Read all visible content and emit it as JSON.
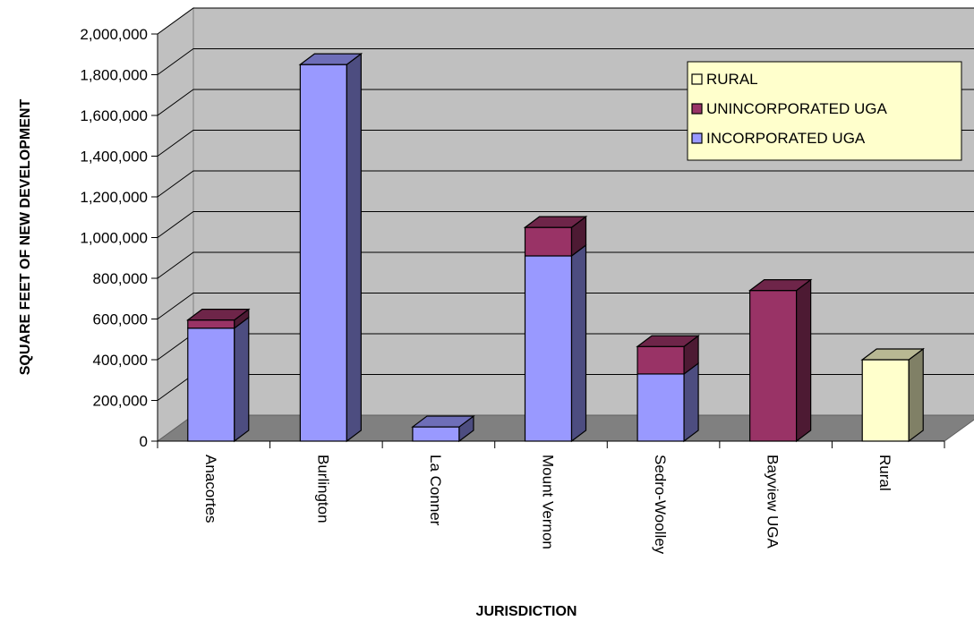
{
  "chart_data": {
    "type": "bar",
    "stacked": true,
    "three_d": true,
    "title": "",
    "xlabel": "JURISDICTION",
    "ylabel": "SQUARE FEET OF NEW DEVELOPMENT",
    "ylim": [
      0,
      2000000
    ],
    "yticks": [
      "0",
      "200,000",
      "400,000",
      "600,000",
      "800,000",
      "1,000,000",
      "1,200,000",
      "1,400,000",
      "1,600,000",
      "1,800,000",
      "2,000,000"
    ],
    "grid": true,
    "legend_position": "top-right",
    "categories": [
      "Anacortes",
      "Burlington",
      "La Conner",
      "Mount Vernon",
      "Sedro-Woolley",
      "Bayview UGA",
      "Rural"
    ],
    "series": [
      {
        "name": "INCORPORATED UGA",
        "color": "#9999ff",
        "values": [
          555000,
          1850000,
          70000,
          910000,
          330000,
          0,
          0
        ]
      },
      {
        "name": "UNINCORPORATED UGA",
        "color": "#993366",
        "values": [
          40000,
          0,
          0,
          140000,
          135000,
          740000,
          0
        ]
      },
      {
        "name": "RURAL",
        "color": "#ffffcc",
        "values": [
          0,
          0,
          0,
          0,
          0,
          0,
          400000
        ]
      }
    ],
    "legend_order": [
      "RURAL",
      "UNINCORPORATED UGA",
      "INCORPORATED UGA"
    ],
    "colors": {
      "wall": "#c0c0c0",
      "floor": "#808080",
      "grid": "#000000"
    }
  }
}
